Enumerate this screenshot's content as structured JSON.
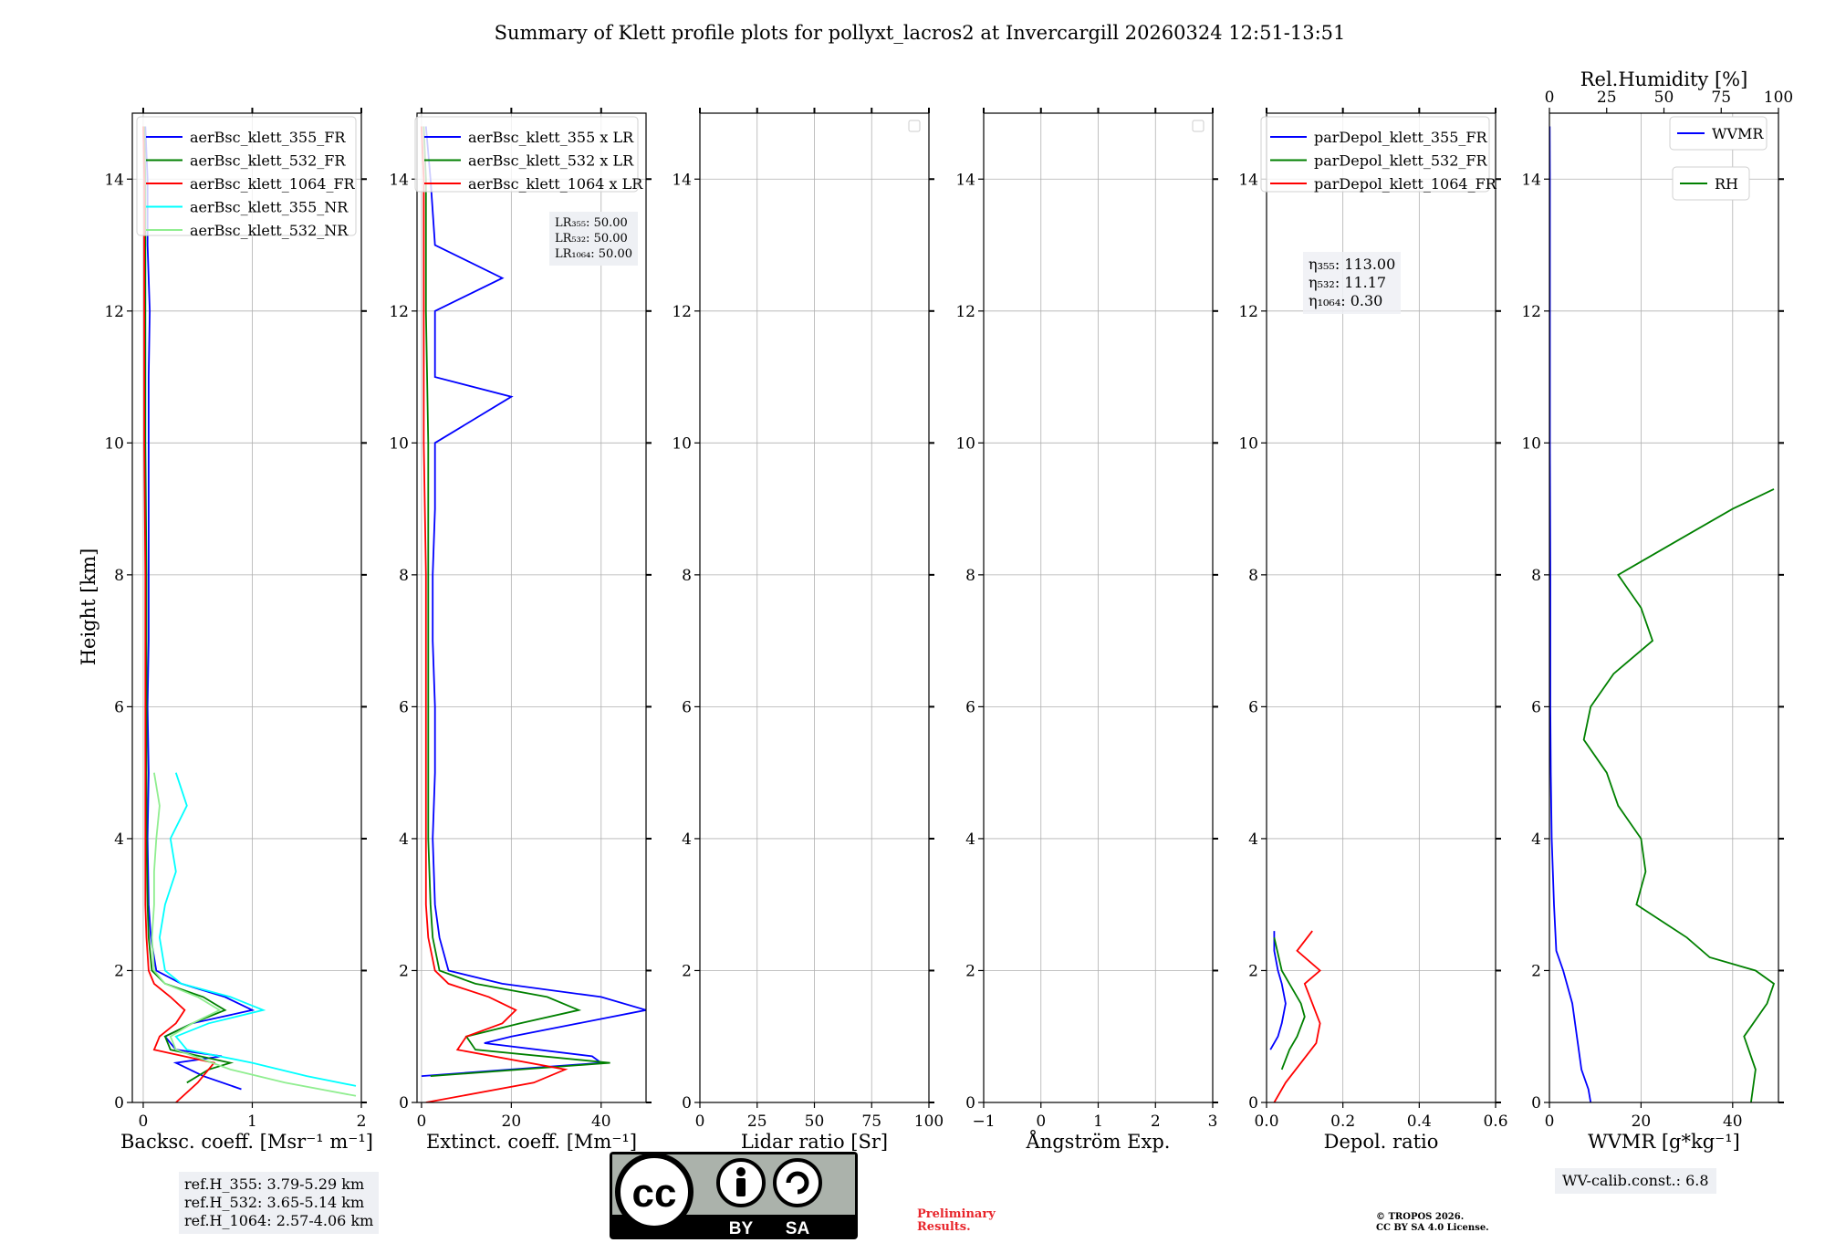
{
  "title": "Summary of Klett profile plots for pollyxt_lacros2 at Invercargill 20260324 12:51-13:51",
  "ylabel": "Height [km]",
  "yticks": [
    0,
    2,
    4,
    6,
    8,
    10,
    12,
    14
  ],
  "panels": [
    {
      "id": "backscatter",
      "xlabel": "Backsc. coeff. [Msr⁻¹ m⁻¹]",
      "xlim": [
        -0.1,
        2
      ],
      "xticks": [
        0,
        1,
        2
      ],
      "xticklabels": [
        "0",
        "1",
        "2"
      ]
    },
    {
      "id": "extinction",
      "xlabel": "Extinct. coeff. [Mm⁻¹]",
      "xlim": [
        -1,
        50
      ],
      "xticks": [
        0,
        20,
        40
      ],
      "xticklabels": [
        "0",
        "20",
        "40"
      ]
    },
    {
      "id": "lidar-ratio",
      "xlabel": "Lidar ratio [Sr]",
      "xlim": [
        0,
        100
      ],
      "xticks": [
        0,
        25,
        50,
        75,
        100
      ],
      "xticklabels": [
        "0",
        "25",
        "50",
        "75",
        "100"
      ]
    },
    {
      "id": "angstrom",
      "xlabel": "Ångström Exp.",
      "xlim": [
        -1,
        3
      ],
      "xticks": [
        -1,
        0,
        1,
        2,
        3
      ],
      "xticklabels": [
        "−1",
        "0",
        "1",
        "2",
        "3"
      ]
    },
    {
      "id": "depol",
      "xlabel": "Depol. ratio",
      "xlim": [
        0,
        0.6
      ],
      "xticks": [
        0,
        0.2,
        0.4,
        0.6
      ],
      "xticklabels": [
        "0.0",
        "0.2",
        "0.4",
        "0.6"
      ]
    },
    {
      "id": "wvmr",
      "xlabel": "WVMR [g*kg⁻¹]",
      "xlim": [
        0,
        50
      ],
      "xticks": [
        0,
        20,
        40
      ],
      "xticklabels": [
        "0",
        "20",
        "40"
      ],
      "top_xlabel": "Rel.Humidity [%]",
      "top_xlim": [
        0,
        100
      ],
      "top_xticks": [
        0,
        25,
        50,
        75,
        100
      ],
      "top_xticklabels": [
        "0",
        "25",
        "50",
        "75",
        "100"
      ]
    }
  ],
  "legends": {
    "backscatter": [
      {
        "label": "aerBsc_klett_355_FR",
        "color": "#0000ff"
      },
      {
        "label": "aerBsc_klett_532_FR",
        "color": "#008000"
      },
      {
        "label": "aerBsc_klett_1064_FR",
        "color": "#ff0000"
      },
      {
        "label": "aerBsc_klett_355_NR",
        "color": "#00ffff"
      },
      {
        "label": "aerBsc_klett_532_NR",
        "color": "#90ee90"
      }
    ],
    "extinction": [
      {
        "label": "aerBsc_klett_355 x LR",
        "color": "#0000ff"
      },
      {
        "label": "aerBsc_klett_532 x LR",
        "color": "#008000"
      },
      {
        "label": "aerBsc_klett_1064 x LR",
        "color": "#ff0000"
      }
    ],
    "depol": [
      {
        "label": "parDepol_klett_355_FR",
        "color": "#0000ff"
      },
      {
        "label": "parDepol_klett_532_FR",
        "color": "#008000"
      },
      {
        "label": "parDepol_klett_1064_FR",
        "color": "#ff0000"
      }
    ],
    "wvmr": [
      {
        "label": "WVMR",
        "color": "#0000ff"
      },
      {
        "label": "RH",
        "color": "#008000"
      }
    ]
  },
  "lidar_ratios": {
    "lr355": "LR₃₅₅: 50.00",
    "lr532": "LR₅₃₂: 50.00",
    "lr1064": "LR₁₀₆₄: 50.00"
  },
  "eta": {
    "eta355": "η₃₅₅: 113.00",
    "eta532": "η₅₃₂: 11.17",
    "eta1064": "η₁₀₆₄: 0.30"
  },
  "ref_heights": {
    "h355": "ref.H_355: 3.79-5.29 km",
    "h532": "ref.H_532: 3.65-5.14 km",
    "h1064": "ref.H_1064: 2.57-4.06 km"
  },
  "wv_calib": "WV-calib.const.: 6.8",
  "cc_badge": {
    "cc": "cc",
    "by": "BY",
    "sa": "SA"
  },
  "preliminary": {
    "line1": "Preliminary",
    "line2": "Results."
  },
  "copyright": {
    "line1": "© TROPOS 2026.",
    "line2": "CC BY SA 4.0 License."
  },
  "chart_data": {
    "type": "line",
    "ylim": [
      0,
      15
    ],
    "series": [
      {
        "panel": "backscatter",
        "name": "aerBsc_klett_355_FR",
        "color": "#0000ff",
        "y": [
          0.2,
          0.4,
          0.6,
          0.7,
          0.8,
          1.0,
          1.2,
          1.4,
          1.6,
          1.8,
          2.0,
          2.5,
          3.0,
          4.0,
          5.0,
          6.0,
          7.0,
          8.0,
          9.0,
          10.0,
          11.0,
          12.0,
          13.0,
          14.0,
          14.8
        ],
        "x": [
          0.9,
          0.55,
          0.3,
          0.72,
          0.3,
          0.2,
          0.45,
          1.0,
          0.75,
          0.35,
          0.12,
          0.07,
          0.05,
          0.04,
          0.05,
          0.04,
          0.05,
          0.05,
          0.05,
          0.05,
          0.05,
          0.06,
          0.04,
          0.04,
          0.02
        ]
      },
      {
        "panel": "backscatter",
        "name": "aerBsc_klett_532_FR",
        "color": "#008000",
        "y": [
          0.3,
          0.5,
          0.6,
          0.8,
          1.0,
          1.2,
          1.4,
          1.6,
          1.8,
          2.0,
          2.5,
          3.0,
          4.0,
          5.0,
          6.0,
          8.0,
          10.0,
          12.0,
          14.0,
          14.8
        ],
        "x": [
          0.4,
          0.6,
          0.8,
          0.25,
          0.2,
          0.45,
          0.75,
          0.55,
          0.2,
          0.08,
          0.05,
          0.04,
          0.03,
          0.03,
          0.03,
          0.03,
          0.02,
          0.02,
          0.02,
          0.01
        ]
      },
      {
        "panel": "backscatter",
        "name": "aerBsc_klett_1064_FR",
        "color": "#ff0000",
        "y": [
          0.0,
          0.3,
          0.6,
          0.8,
          1.0,
          1.2,
          1.4,
          1.6,
          1.8,
          2.0,
          2.5,
          3.0,
          4.0,
          6.0,
          8.0,
          10.0,
          12.0,
          14.0,
          14.8
        ],
        "x": [
          0.3,
          0.5,
          0.65,
          0.1,
          0.15,
          0.3,
          0.38,
          0.25,
          0.1,
          0.05,
          0.03,
          0.02,
          0.02,
          0.02,
          0.02,
          0.01,
          0.01,
          0.01,
          0.0
        ]
      },
      {
        "panel": "backscatter",
        "name": "aerBsc_klett_355_NR",
        "color": "#00ffff",
        "y": [
          0.25,
          0.4,
          0.6,
          0.8,
          1.0,
          1.2,
          1.4,
          1.6,
          1.8,
          2.0,
          2.5,
          3.0,
          3.5,
          4.0,
          4.5,
          5.0
        ],
        "x": [
          1.95,
          1.5,
          1.0,
          0.4,
          0.3,
          0.6,
          1.1,
          0.8,
          0.35,
          0.2,
          0.15,
          0.2,
          0.3,
          0.25,
          0.4,
          0.3
        ]
      },
      {
        "panel": "backscatter",
        "name": "aerBsc_klett_532_NR",
        "color": "#90ee90",
        "y": [
          0.1,
          0.3,
          0.5,
          0.8,
          1.0,
          1.2,
          1.4,
          1.6,
          1.8,
          2.0,
          2.5,
          3.0,
          3.5,
          4.0,
          4.5,
          5.0
        ],
        "x": [
          1.95,
          1.3,
          0.8,
          0.3,
          0.25,
          0.45,
          0.7,
          0.5,
          0.2,
          0.1,
          0.08,
          0.1,
          0.1,
          0.12,
          0.15,
          0.1
        ]
      },
      {
        "panel": "extinction",
        "name": "aerBsc_klett_355 x LR",
        "color": "#0000ff",
        "y": [
          0.4,
          0.6,
          0.7,
          0.9,
          1.0,
          1.2,
          1.4,
          1.6,
          1.8,
          2.0,
          2.5,
          3.0,
          4.0,
          5.0,
          6.0,
          7.0,
          8.0,
          9.0,
          10.0,
          10.7,
          11.0,
          12.0,
          12.5,
          13.0,
          14.0,
          14.8
        ],
        "x": [
          0.0,
          40.0,
          38.0,
          14.0,
          20.0,
          35.0,
          50.0,
          40.0,
          18.0,
          6.0,
          4.0,
          3.0,
          2.5,
          3.0,
          3.0,
          2.5,
          2.5,
          3.0,
          3.0,
          20.0,
          3.0,
          3.0,
          18.0,
          3.0,
          2.0,
          1.0
        ]
      },
      {
        "panel": "extinction",
        "name": "aerBsc_klett_532 x LR",
        "color": "#008000",
        "y": [
          0.4,
          0.6,
          0.8,
          1.0,
          1.2,
          1.4,
          1.6,
          1.8,
          2.0,
          2.5,
          3.0,
          4.0,
          6.0,
          8.0,
          10.0,
          12.0,
          14.0,
          14.8
        ],
        "x": [
          2.0,
          42.0,
          12.0,
          10.0,
          22.0,
          35.0,
          28.0,
          12.0,
          4.0,
          2.5,
          2.0,
          1.5,
          1.5,
          1.5,
          1.5,
          1.0,
          1.0,
          0.5
        ]
      },
      {
        "panel": "extinction",
        "name": "aerBsc_klett_1064 x LR",
        "color": "#ff0000",
        "y": [
          0.0,
          0.3,
          0.5,
          0.8,
          1.0,
          1.2,
          1.4,
          1.6,
          1.8,
          2.0,
          2.5,
          3.0,
          4.0,
          6.0,
          8.0,
          10.0,
          12.0,
          14.0,
          14.8
        ],
        "x": [
          1.0,
          25.0,
          32.0,
          8.0,
          10.0,
          18.0,
          21.0,
          15.0,
          6.0,
          3.0,
          1.5,
          1.0,
          1.0,
          1.0,
          1.0,
          0.5,
          0.5,
          0.5,
          0.0
        ]
      },
      {
        "panel": "depol",
        "name": "parDepol_klett_355_FR",
        "color": "#0000ff",
        "y": [
          0.8,
          1.0,
          1.2,
          1.5,
          1.8,
          2.0,
          2.3,
          2.6
        ],
        "x": [
          0.01,
          0.03,
          0.04,
          0.05,
          0.04,
          0.03,
          0.02,
          0.02
        ]
      },
      {
        "panel": "depol",
        "name": "parDepol_klett_532_FR",
        "color": "#008000",
        "y": [
          0.5,
          0.8,
          1.0,
          1.3,
          1.5,
          1.8,
          2.0,
          2.5
        ],
        "x": [
          0.04,
          0.06,
          0.08,
          0.1,
          0.09,
          0.06,
          0.04,
          0.02
        ]
      },
      {
        "panel": "depol",
        "name": "parDepol_klett_1064_FR",
        "color": "#ff0000",
        "y": [
          0.0,
          0.3,
          0.6,
          0.9,
          1.2,
          1.5,
          1.8,
          2.0,
          2.3,
          2.6
        ],
        "x": [
          0.02,
          0.05,
          0.09,
          0.13,
          0.14,
          0.12,
          0.1,
          0.14,
          0.08,
          0.12
        ]
      },
      {
        "panel": "wvmr",
        "name": "WVMR",
        "color": "#0000ff",
        "x_unit": "g/kg",
        "y": [
          0.0,
          0.2,
          0.5,
          1.0,
          1.5,
          2.0,
          2.3,
          3.0,
          4.0,
          5.0,
          6.0,
          8.0,
          10.0,
          12.0,
          14.0,
          14.8
        ],
        "x": [
          9.0,
          8.5,
          7.0,
          6.0,
          5.0,
          3.0,
          1.5,
          1.0,
          0.5,
          0.3,
          0.2,
          0.2,
          0.1,
          0.1,
          0.1,
          0.05
        ]
      },
      {
        "panel": "wvmr",
        "name": "RH",
        "color": "#008000",
        "x_unit": "%",
        "y": [
          0.0,
          0.5,
          1.0,
          1.5,
          1.8,
          2.0,
          2.2,
          2.5,
          3.0,
          3.5,
          4.0,
          4.5,
          5.0,
          5.5,
          6.0,
          6.5,
          7.0,
          7.5,
          8.0,
          8.5,
          9.0,
          9.3
        ],
        "x": [
          88.0,
          90.0,
          85.0,
          95.0,
          98.0,
          90.0,
          70.0,
          60.0,
          38.0,
          42.0,
          40.0,
          30.0,
          25.0,
          15.0,
          18.0,
          28.0,
          45.0,
          40.0,
          30.0,
          55.0,
          80.0,
          98.0
        ]
      }
    ]
  }
}
